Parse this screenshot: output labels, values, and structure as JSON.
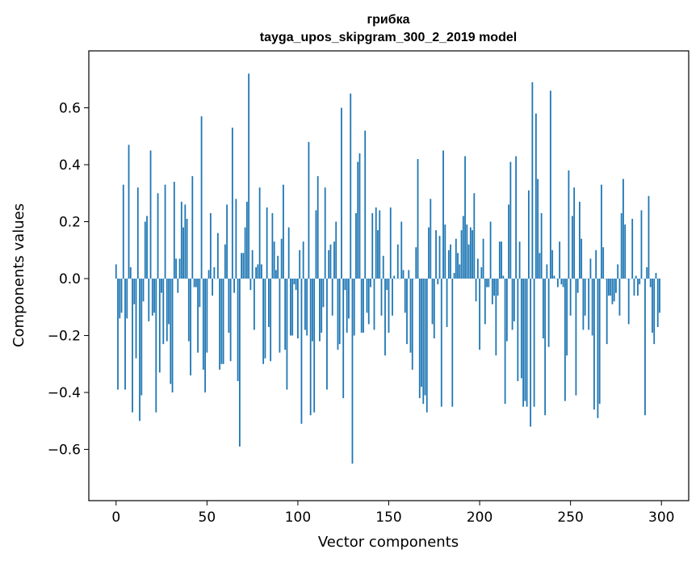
{
  "chart_data": {
    "type": "bar",
    "title": "грибка",
    "subtitle": "tayga_upos_skipgram_300_2_2019 model",
    "xlabel": "Vector components",
    "ylabel": "Components values",
    "xlim": [
      -15,
      315
    ],
    "ylim": [
      -0.78,
      0.8
    ],
    "xticks": [
      0,
      50,
      100,
      150,
      200,
      250,
      300
    ],
    "xtick_labels": [
      "0",
      "50",
      "100",
      "150",
      "200",
      "250",
      "300"
    ],
    "yticks": [
      -0.6,
      -0.4,
      -0.2,
      0.0,
      0.2,
      0.4,
      0.6
    ],
    "ytick_labels": [
      "−0.6",
      "−0.4",
      "−0.2",
      "0.0",
      "0.2",
      "0.4",
      "0.6"
    ],
    "grid": false,
    "bar_color": "#1f77b4",
    "x_start": 0,
    "values": [
      0.05,
      -0.39,
      -0.14,
      -0.12,
      0.33,
      -0.39,
      -0.14,
      0.47,
      0.04,
      -0.47,
      -0.09,
      -0.28,
      0.32,
      -0.5,
      -0.41,
      -0.08,
      0.2,
      0.22,
      -0.15,
      0.45,
      -0.13,
      -0.12,
      -0.47,
      0.3,
      -0.33,
      -0.05,
      -0.23,
      0.33,
      -0.22,
      -0.16,
      -0.37,
      -0.4,
      0.34,
      0.07,
      -0.05,
      0.07,
      0.27,
      0.18,
      0.26,
      0.21,
      -0.22,
      -0.34,
      0.36,
      -0.03,
      -0.03,
      -0.26,
      -0.1,
      0.57,
      -0.32,
      -0.4,
      -0.26,
      0.03,
      0.23,
      -0.06,
      0.04,
      0.0,
      0.16,
      -0.32,
      -0.3,
      -0.3,
      0.12,
      0.26,
      -0.19,
      -0.29,
      0.53,
      -0.05,
      0.28,
      -0.36,
      -0.59,
      0.09,
      0.09,
      0.18,
      0.27,
      0.72,
      -0.04,
      0.1,
      -0.18,
      0.04,
      0.05,
      0.32,
      0.05,
      -0.3,
      -0.28,
      0.25,
      -0.17,
      -0.29,
      0.23,
      0.13,
      0.03,
      0.08,
      -0.26,
      0.14,
      0.33,
      -0.25,
      -0.39,
      0.18,
      -0.2,
      -0.2,
      -0.02,
      -0.04,
      -0.21,
      0.1,
      -0.51,
      0.13,
      -0.18,
      -0.2,
      0.48,
      -0.48,
      -0.22,
      -0.47,
      0.24,
      0.36,
      -0.22,
      -0.19,
      -0.1,
      0.32,
      -0.39,
      0.1,
      0.12,
      -0.13,
      0.13,
      0.2,
      -0.25,
      -0.23,
      0.6,
      -0.42,
      -0.04,
      -0.19,
      -0.14,
      0.65,
      -0.65,
      -0.2,
      0.23,
      0.41,
      0.44,
      -0.19,
      -0.19,
      0.52,
      -0.12,
      -0.16,
      -0.03,
      0.23,
      -0.18,
      0.25,
      0.17,
      0.24,
      -0.13,
      0.08,
      -0.27,
      -0.04,
      -0.19,
      0.25,
      -0.13,
      0.01,
      0.0,
      0.12,
      0.0,
      0.2,
      0.03,
      -0.12,
      -0.23,
      0.03,
      -0.26,
      -0.32,
      0.0,
      0.11,
      0.42,
      -0.42,
      -0.38,
      -0.44,
      -0.41,
      -0.47,
      0.18,
      0.28,
      -0.16,
      -0.21,
      0.17,
      -0.02,
      0.15,
      -0.45,
      0.45,
      0.19,
      -0.17,
      0.1,
      0.12,
      -0.45,
      0.02,
      0.14,
      0.09,
      0.05,
      0.17,
      0.22,
      0.43,
      0.19,
      0.12,
      0.18,
      0.17,
      0.3,
      -0.08,
      0.07,
      -0.25,
      0.04,
      0.14,
      -0.16,
      -0.03,
      -0.03,
      0.2,
      -0.09,
      -0.06,
      -0.27,
      -0.06,
      0.13,
      0.13,
      0.01,
      -0.44,
      -0.22,
      0.26,
      0.41,
      -0.18,
      -0.15,
      0.43,
      -0.36,
      0.13,
      -0.35,
      -0.45,
      -0.43,
      -0.45,
      0.31,
      -0.52,
      0.69,
      -0.45,
      0.58,
      0.35,
      0.09,
      0.23,
      -0.21,
      -0.48,
      0.05,
      -0.24,
      0.66,
      0.1,
      0.01,
      0.0,
      -0.03,
      0.13,
      -0.02,
      -0.03,
      -0.43,
      -0.27,
      0.38,
      -0.13,
      0.22,
      0.32,
      -0.41,
      -0.05,
      0.27,
      0.14,
      -0.18,
      -0.13,
      0.0,
      -0.18,
      0.07,
      -0.2,
      -0.46,
      0.1,
      -0.49,
      -0.44,
      0.33,
      0.11,
      0.0,
      -0.23,
      -0.06,
      -0.06,
      -0.09,
      -0.08,
      -0.05,
      0.05,
      -0.13,
      0.23,
      0.35,
      0.19,
      0.0,
      -0.16,
      0.0,
      0.21,
      -0.06,
      0.01,
      -0.06,
      -0.02,
      0.24,
      0.0,
      -0.48,
      0.04,
      0.29,
      -0.03,
      -0.19,
      -0.23,
      0.02,
      -0.17,
      -0.12
    ]
  }
}
